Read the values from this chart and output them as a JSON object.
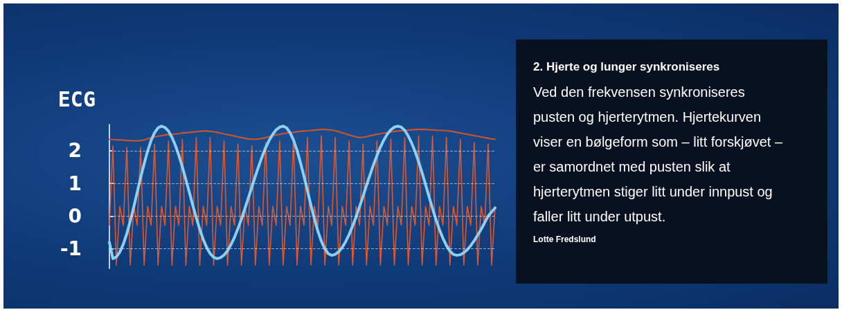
{
  "chart_data": {
    "type": "line",
    "title": "2. Hjerte og lunger synkroniseres",
    "ylabel": "ECG",
    "annotations": [
      "Ved den frekvensen synkroniseres pusten og hjerterytmen. Hjertekurven viser en bølgeform som – litt forskjøvet – er samordnet med pusten slik at hjerterytmen stiger litt under innpust og faller litt under utpust.",
      "Lotte Fredslund"
    ],
    "categories": [
      null,
      null,
      null,
      null,
      null,
      null,
      null,
      null,
      null,
      null,
      null,
      null,
      null,
      null,
      null,
      null,
      null,
      null,
      null,
      null,
      null,
      null,
      null,
      null,
      null,
      null,
      null,
      null,
      null,
      null,
      null,
      null,
      null,
      null,
      null,
      null,
      null,
      null,
      null,
      null,
      null,
      null,
      null,
      null,
      null,
      null,
      null,
      null,
      null,
      null,
      null,
      null,
      null,
      null,
      null,
      null,
      null,
      null,
      null,
      null,
      null,
      null,
      null,
      null,
      null,
      null,
      null,
      null,
      null,
      null,
      null,
      null,
      null,
      null,
      null,
      null,
      null,
      null,
      null,
      null,
      null,
      null,
      null,
      null,
      null,
      null,
      null,
      null,
      null,
      null,
      null,
      null,
      null,
      null,
      null,
      null,
      null,
      null,
      null,
      null,
      null,
      null,
      null,
      null,
      null,
      null,
      null,
      null,
      null,
      null,
      null,
      null
    ],
    "series": [
      {
        "color": "#e0582a",
        "values": [
          -0.28,
          2.15,
          -1.5,
          0.3,
          -0.28,
          2.1,
          -1.5,
          0.3,
          -0.28,
          2.1,
          -1.5,
          0.3,
          -0.28,
          2.2,
          -1.5,
          0.3,
          -0.28,
          2.3,
          -1.5,
          0.3,
          -0.28,
          2.35,
          -1.5,
          0.3,
          -0.28,
          2.4,
          -1.5,
          0.3,
          -0.28,
          2.4,
          -1.5,
          0.3,
          -0.28,
          2.3,
          -1.5,
          0.3,
          -0.28,
          2.2,
          -1.5,
          0.3,
          -0.28,
          2.15,
          -1.5,
          0.3,
          -0.28,
          2.25,
          -1.5,
          0.3,
          -0.28,
          2.3,
          -1.5,
          0.3,
          -0.28,
          2.35,
          -1.5,
          0.3,
          -0.28,
          2.4,
          -1.5,
          0.3,
          -0.28,
          2.45,
          -1.5,
          0.3,
          -0.28,
          2.4,
          -1.5,
          0.3,
          -0.28,
          2.3,
          -1.5,
          0.3,
          -0.28,
          2.2,
          -1.5,
          0.3,
          -0.28,
          2.3,
          -1.5,
          0.3,
          -0.28,
          2.35,
          -1.5,
          0.3,
          -0.28,
          2.4,
          -1.5,
          0.3,
          -0.28,
          2.45,
          -1.5,
          0.3,
          -0.28,
          2.45,
          -1.5,
          0.3,
          -0.28,
          2.4,
          -1.5,
          0.3,
          -0.28,
          2.35,
          -1.5,
          0.3,
          -0.28,
          2.25,
          -1.5,
          0.3,
          -0.28,
          2.2,
          -1.5,
          0.3
        ]
      },
      {
        "color": "#c9532b",
        "values": [
          2.35,
          2.34,
          2.33,
          2.33,
          2.32,
          2.31,
          2.31,
          2.3,
          2.3,
          2.31,
          2.33,
          2.36,
          2.39,
          2.42,
          2.44,
          2.46,
          2.48,
          2.49,
          2.5,
          2.51,
          2.52,
          2.54,
          2.55,
          2.56,
          2.57,
          2.58,
          2.59,
          2.6,
          2.6,
          2.59,
          2.58,
          2.56,
          2.54,
          2.51,
          2.49,
          2.47,
          2.45,
          2.42,
          2.4,
          2.38,
          2.36,
          2.35,
          2.35,
          2.36,
          2.38,
          2.4,
          2.43,
          2.46,
          2.48,
          2.5,
          2.52,
          2.54,
          2.55,
          2.56,
          2.58,
          2.59,
          2.6,
          2.61,
          2.62,
          2.63,
          2.64,
          2.65,
          2.65,
          2.64,
          2.63,
          2.61,
          2.58,
          2.55,
          2.52,
          2.48,
          2.45,
          2.42,
          2.4,
          2.41,
          2.43,
          2.46,
          2.48,
          2.5,
          2.52,
          2.54,
          2.55,
          2.57,
          2.59,
          2.6,
          2.61,
          2.62,
          2.63,
          2.64,
          2.65,
          2.65,
          2.65,
          2.65,
          2.64,
          2.64,
          2.63,
          2.62,
          2.62,
          2.61,
          2.6,
          2.58,
          2.56,
          2.54,
          2.52,
          2.5,
          2.48,
          2.46,
          2.44,
          2.42,
          2.4,
          2.38,
          2.36,
          2.35
        ]
      },
      {
        "color": "#8ccff5",
        "values": [
          -0.8,
          -1.3,
          -1.25,
          -1.1,
          -0.86,
          -0.54,
          -0.15,
          0.27,
          0.73,
          1.18,
          1.6,
          1.99,
          2.31,
          2.55,
          2.7,
          2.75,
          2.71,
          2.6,
          2.41,
          2.16,
          1.85,
          1.5,
          1.12,
          0.73,
          0.33,
          -0.05,
          -0.4,
          -0.71,
          -0.96,
          -1.15,
          -1.26,
          -1.3,
          -1.27,
          -1.19,
          -1.06,
          -0.87,
          -0.65,
          -0.38,
          -0.09,
          0.23,
          0.56,
          0.89,
          1.22,
          1.54,
          1.83,
          2.1,
          2.32,
          2.5,
          2.64,
          2.72,
          2.75,
          2.7,
          2.55,
          2.32,
          2.01,
          1.63,
          1.22,
          0.78,
          0.33,
          -0.08,
          -0.46,
          -0.77,
          -1.0,
          -1.15,
          -1.2,
          -1.17,
          -1.09,
          -0.96,
          -0.78,
          -0.56,
          -0.3,
          -0.02,
          0.29,
          0.61,
          0.94,
          1.26,
          1.57,
          1.85,
          2.11,
          2.33,
          2.51,
          2.64,
          2.72,
          2.75,
          2.72,
          2.62,
          2.45,
          2.23,
          1.97,
          1.66,
          1.32,
          0.96,
          0.59,
          0.23,
          -0.11,
          -0.42,
          -0.68,
          -0.9,
          -1.07,
          -1.17,
          -1.2,
          -1.18,
          -1.12,
          -1.03,
          -0.9,
          -0.75,
          -0.58,
          -0.4,
          -0.2,
          0.0,
          0.13,
          0.25
        ]
      }
    ],
    "ylim": [
      -1.6,
      2.8
    ],
    "yticks": [
      -1,
      0,
      1,
      2
    ],
    "grid": "y",
    "line_style": "solid",
    "tick_labels": "y"
  }
}
